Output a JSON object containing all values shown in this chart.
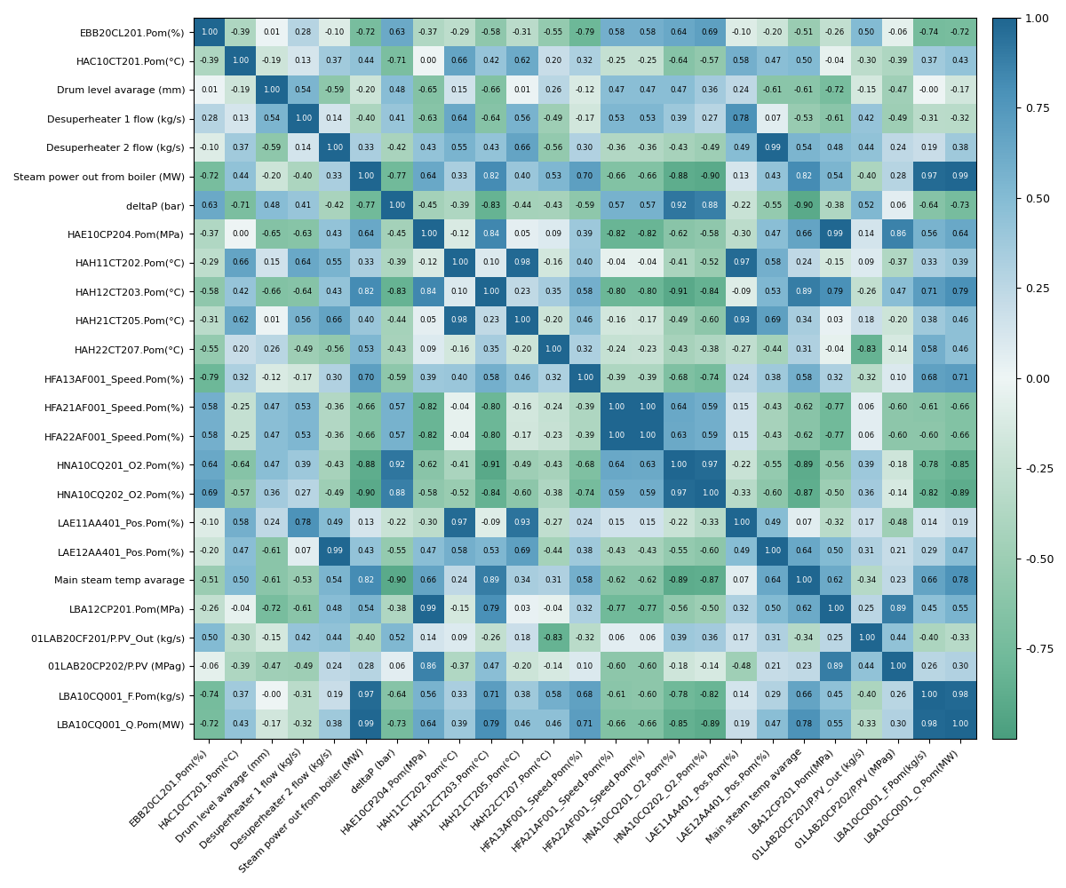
{
  "labels": [
    "EBB20CL201.Pom(%)",
    "HAC10CT201.Pom(°C)",
    "Drum level avarage (mm)",
    "Desuperheater 1 flow (kg/s)",
    "Desuperheater 2 flow (kg/s)",
    "Steam power out from boiler (MW)",
    "deltaP (bar)",
    "HAE10CP204.Pom(MPa)",
    "HAH11CT202.Pom(°C)",
    "HAH12CT203.Pom(°C)",
    "HAH21CT205.Pom(°C)",
    "HAH22CT207.Pom(°C)",
    "HFA13AF001_Speed.Pom(%)",
    "HFA21AF001_Speed.Pom(%)",
    "HFA22AF001_Speed.Pom(%)",
    "HNA10CQ201_O2.Pom(%)",
    "HNA10CQ202_O2.Pom(%)",
    "LAE11AA401_Pos.Pom(%)",
    "LAE12AA401_Pos.Pom(%)",
    "Main steam temp avarage",
    "LBA12CP201.Pom(MPa)",
    "01LAB20CF201/P.PV_Out (kg/s)",
    "01LAB20CP202/P.PV (MPag)",
    "LBA10CQ001_F.Pom(kg/s)",
    "LBA10CQ001_Q.Pom(MW)"
  ],
  "matrix": [
    [
      1.0,
      -0.39,
      0.01,
      0.28,
      -0.1,
      -0.72,
      0.63,
      -0.37,
      -0.29,
      -0.58,
      -0.31,
      -0.55,
      -0.79,
      0.58,
      0.58,
      0.64,
      0.69,
      -0.1,
      -0.2,
      -0.51,
      -0.26,
      0.5,
      -0.06,
      -0.74,
      -0.72
    ],
    [
      -0.39,
      1.0,
      -0.19,
      0.13,
      0.37,
      0.44,
      -0.71,
      0.0,
      0.66,
      0.42,
      0.62,
      0.2,
      0.32,
      -0.25,
      -0.25,
      -0.64,
      -0.57,
      0.58,
      0.47,
      0.5,
      -0.04,
      -0.3,
      -0.39,
      0.37,
      0.43
    ],
    [
      0.01,
      -0.19,
      1.0,
      0.54,
      -0.59,
      -0.2,
      0.48,
      -0.65,
      0.15,
      -0.66,
      0.01,
      0.26,
      -0.12,
      0.47,
      0.47,
      0.47,
      0.36,
      0.24,
      -0.61,
      -0.61,
      -0.72,
      -0.15,
      -0.47,
      -0.0,
      -0.17
    ],
    [
      0.28,
      0.13,
      0.54,
      1.0,
      0.14,
      -0.4,
      0.41,
      -0.63,
      0.64,
      -0.64,
      0.56,
      -0.49,
      -0.17,
      0.53,
      0.53,
      0.39,
      0.27,
      0.78,
      0.07,
      -0.53,
      -0.61,
      0.42,
      -0.49,
      -0.31,
      -0.32
    ],
    [
      -0.1,
      0.37,
      -0.59,
      0.14,
      1.0,
      0.33,
      -0.42,
      0.43,
      0.55,
      0.43,
      0.66,
      -0.56,
      0.3,
      -0.36,
      -0.36,
      -0.43,
      -0.49,
      0.49,
      0.99,
      0.54,
      0.48,
      0.44,
      0.24,
      0.19,
      0.38
    ],
    [
      -0.72,
      0.44,
      -0.2,
      -0.4,
      0.33,
      1.0,
      -0.77,
      0.64,
      0.33,
      0.82,
      0.4,
      0.53,
      0.7,
      -0.66,
      -0.66,
      -0.88,
      -0.9,
      0.13,
      0.43,
      0.82,
      0.54,
      -0.4,
      0.28,
      0.97,
      0.99
    ],
    [
      0.63,
      -0.71,
      0.48,
      0.41,
      -0.42,
      -0.77,
      1.0,
      -0.45,
      -0.39,
      -0.83,
      -0.44,
      -0.43,
      -0.59,
      0.57,
      0.57,
      0.92,
      0.88,
      -0.22,
      -0.55,
      -0.9,
      -0.38,
      0.52,
      0.06,
      -0.64,
      -0.73
    ],
    [
      -0.37,
      0.0,
      -0.65,
      -0.63,
      0.43,
      0.64,
      -0.45,
      1.0,
      -0.12,
      0.84,
      0.05,
      0.09,
      0.39,
      -0.82,
      -0.82,
      -0.62,
      -0.58,
      -0.3,
      0.47,
      0.66,
      0.99,
      0.14,
      0.86,
      0.56,
      0.64
    ],
    [
      -0.29,
      0.66,
      0.15,
      0.64,
      0.55,
      0.33,
      -0.39,
      -0.12,
      1.0,
      0.1,
      0.98,
      -0.16,
      0.4,
      -0.04,
      -0.04,
      -0.41,
      -0.52,
      0.97,
      0.58,
      0.24,
      -0.15,
      0.09,
      -0.37,
      0.33,
      0.39
    ],
    [
      -0.58,
      0.42,
      -0.66,
      -0.64,
      0.43,
      0.82,
      -0.83,
      0.84,
      0.1,
      1.0,
      0.23,
      0.35,
      0.58,
      -0.8,
      -0.8,
      -0.91,
      -0.84,
      -0.09,
      0.53,
      0.89,
      0.79,
      -0.26,
      0.47,
      0.71,
      0.79
    ],
    [
      -0.31,
      0.62,
      0.01,
      0.56,
      0.66,
      0.4,
      -0.44,
      0.05,
      0.98,
      0.23,
      1.0,
      -0.2,
      0.46,
      -0.16,
      -0.17,
      -0.49,
      -0.6,
      0.93,
      0.69,
      0.34,
      0.03,
      0.18,
      -0.2,
      0.38,
      0.46
    ],
    [
      -0.55,
      0.2,
      0.26,
      -0.49,
      -0.56,
      0.53,
      -0.43,
      0.09,
      -0.16,
      0.35,
      -0.2,
      1.0,
      0.32,
      -0.24,
      -0.23,
      -0.43,
      -0.38,
      -0.27,
      -0.44,
      0.31,
      -0.04,
      -0.83,
      -0.14,
      0.58,
      0.46
    ],
    [
      -0.79,
      0.32,
      -0.12,
      -0.17,
      0.3,
      0.7,
      -0.59,
      0.39,
      0.4,
      0.58,
      0.46,
      0.32,
      1.0,
      -0.39,
      -0.39,
      -0.68,
      -0.74,
      0.24,
      0.38,
      0.58,
      0.32,
      -0.32,
      0.1,
      0.68,
      0.71
    ],
    [
      0.58,
      -0.25,
      0.47,
      0.53,
      -0.36,
      -0.66,
      0.57,
      -0.82,
      -0.04,
      -0.8,
      -0.16,
      -0.24,
      -0.39,
      1.0,
      1.0,
      0.64,
      0.59,
      0.15,
      -0.43,
      -0.62,
      -0.77,
      0.06,
      -0.6,
      -0.61,
      -0.66
    ],
    [
      0.58,
      -0.25,
      0.47,
      0.53,
      -0.36,
      -0.66,
      0.57,
      -0.82,
      -0.04,
      -0.8,
      -0.17,
      -0.23,
      -0.39,
      1.0,
      1.0,
      0.63,
      0.59,
      0.15,
      -0.43,
      -0.62,
      -0.77,
      0.06,
      -0.6,
      -0.6,
      -0.66
    ],
    [
      0.64,
      -0.64,
      0.47,
      0.39,
      -0.43,
      -0.88,
      0.92,
      -0.62,
      -0.41,
      -0.91,
      -0.49,
      -0.43,
      -0.68,
      0.64,
      0.63,
      1.0,
      0.97,
      -0.22,
      -0.55,
      -0.89,
      -0.56,
      0.39,
      -0.18,
      -0.78,
      -0.85
    ],
    [
      0.69,
      -0.57,
      0.36,
      0.27,
      -0.49,
      -0.9,
      0.88,
      -0.58,
      -0.52,
      -0.84,
      -0.6,
      -0.38,
      -0.74,
      0.59,
      0.59,
      0.97,
      1.0,
      -0.33,
      -0.6,
      -0.87,
      -0.5,
      0.36,
      -0.14,
      -0.82,
      -0.89
    ],
    [
      -0.1,
      0.58,
      0.24,
      0.78,
      0.49,
      0.13,
      -0.22,
      -0.3,
      0.97,
      -0.09,
      0.93,
      -0.27,
      0.24,
      0.15,
      0.15,
      -0.22,
      -0.33,
      1.0,
      0.49,
      0.07,
      -0.32,
      0.17,
      -0.48,
      0.14,
      0.19
    ],
    [
      -0.2,
      0.47,
      -0.61,
      0.07,
      0.99,
      0.43,
      -0.55,
      0.47,
      0.58,
      0.53,
      0.69,
      -0.44,
      0.38,
      -0.43,
      -0.43,
      -0.55,
      -0.6,
      0.49,
      1.0,
      0.64,
      0.5,
      0.31,
      0.21,
      0.29,
      0.47
    ],
    [
      -0.51,
      0.5,
      -0.61,
      -0.53,
      0.54,
      0.82,
      -0.9,
      0.66,
      0.24,
      0.89,
      0.34,
      0.31,
      0.58,
      -0.62,
      -0.62,
      -0.89,
      -0.87,
      0.07,
      0.64,
      1.0,
      0.62,
      -0.34,
      0.23,
      0.66,
      0.78
    ],
    [
      -0.26,
      -0.04,
      -0.72,
      -0.61,
      0.48,
      0.54,
      -0.38,
      0.99,
      -0.15,
      0.79,
      0.03,
      -0.04,
      0.32,
      -0.77,
      -0.77,
      -0.56,
      -0.5,
      0.32,
      0.5,
      0.62,
      1.0,
      0.25,
      0.89,
      0.45,
      0.55
    ],
    [
      0.5,
      -0.3,
      -0.15,
      0.42,
      0.44,
      -0.4,
      0.52,
      0.14,
      0.09,
      -0.26,
      0.18,
      -0.83,
      -0.32,
      0.06,
      0.06,
      0.39,
      0.36,
      0.17,
      0.31,
      -0.34,
      0.25,
      1.0,
      0.44,
      -0.4,
      -0.33
    ],
    [
      -0.06,
      -0.39,
      -0.47,
      -0.49,
      0.24,
      0.28,
      0.06,
      0.86,
      -0.37,
      0.47,
      -0.2,
      -0.14,
      0.1,
      -0.6,
      -0.6,
      -0.18,
      -0.14,
      -0.48,
      0.21,
      0.23,
      0.89,
      0.44,
      1.0,
      0.26,
      0.3
    ],
    [
      -0.74,
      0.37,
      -0.0,
      -0.31,
      0.19,
      0.97,
      -0.64,
      0.56,
      0.33,
      0.71,
      0.38,
      0.58,
      0.68,
      -0.61,
      -0.6,
      -0.78,
      -0.82,
      0.14,
      0.29,
      0.66,
      0.45,
      -0.4,
      0.26,
      1.0,
      0.98
    ],
    [
      -0.72,
      0.43,
      -0.17,
      -0.32,
      0.38,
      0.99,
      -0.73,
      0.64,
      0.39,
      0.79,
      0.46,
      0.46,
      0.71,
      -0.66,
      -0.66,
      -0.85,
      -0.89,
      0.19,
      0.47,
      0.78,
      0.55,
      -0.33,
      0.3,
      0.98,
      1.0
    ]
  ],
  "vmin": -1.0,
  "vmax": 1.0,
  "figsize": [
    12,
    10
  ],
  "dpi": 100,
  "annot_fontsize": 6.2,
  "tick_fontsize": 8.0,
  "colorbar_ticks": [
    1.0,
    0.75,
    0.5,
    0.25,
    0.0,
    -0.25,
    -0.5,
    -0.75
  ],
  "colorbar_tick_labels": [
    "1.00",
    "0.75",
    "0.50",
    "0.25",
    "0.00",
    "-0.25",
    "-0.50",
    "-0.75"
  ],
  "cmap_nodes": [
    [
      0.0,
      "#4a9e7e"
    ],
    [
      0.1,
      "#6db898"
    ],
    [
      0.25,
      "#9dceb4"
    ],
    [
      0.4,
      "#cce4d8"
    ],
    [
      0.5,
      "#eef5f5"
    ],
    [
      0.6,
      "#c8dde8"
    ],
    [
      0.75,
      "#85bcd4"
    ],
    [
      0.9,
      "#4a91b8"
    ],
    [
      1.0,
      "#1f6690"
    ]
  ]
}
